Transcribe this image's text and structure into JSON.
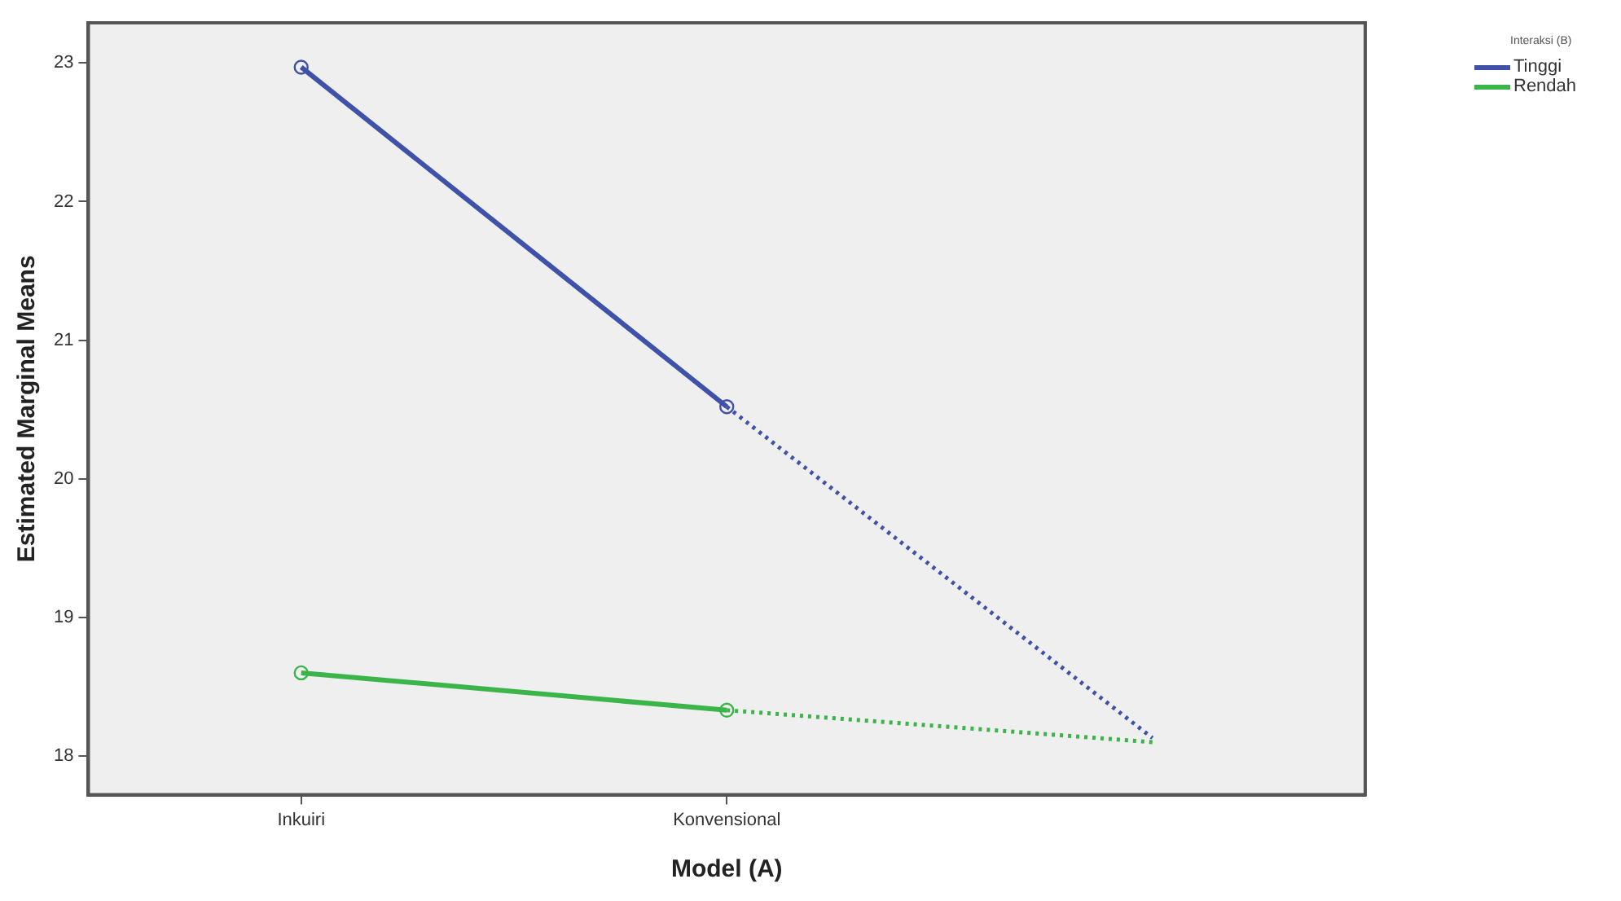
{
  "chart_data": {
    "type": "line",
    "xlabel": "Model (A)",
    "ylabel": "Estimated Marginal Means",
    "legend_title": "Interaksi (B)",
    "categories": [
      "Inkuiri",
      "Konvensional",
      null
    ],
    "ylim": [
      17.72,
      23.29
    ],
    "yticks": [
      18,
      19,
      20,
      21,
      22,
      23
    ],
    "grid": false,
    "legend": "top right",
    "series": [
      {
        "name": "Tinggi",
        "color": "#3f51a8",
        "values": [
          22.97,
          20.52,
          null
        ],
        "marker": "circle",
        "line_style": "solid"
      },
      {
        "name": "Rendah",
        "color": "#3bb44a",
        "values": [
          18.6,
          18.33,
          null
        ],
        "marker": "circle",
        "line_style": "solid"
      },
      {
        "color": "#3f51a8",
        "values": [
          null,
          20.52,
          18.13
        ],
        "marker": "none",
        "line_style": "dotted"
      },
      {
        "color": "#3bb44a",
        "values": [
          null,
          18.33,
          18.1
        ],
        "marker": "none",
        "line_style": "dotted"
      }
    ]
  }
}
